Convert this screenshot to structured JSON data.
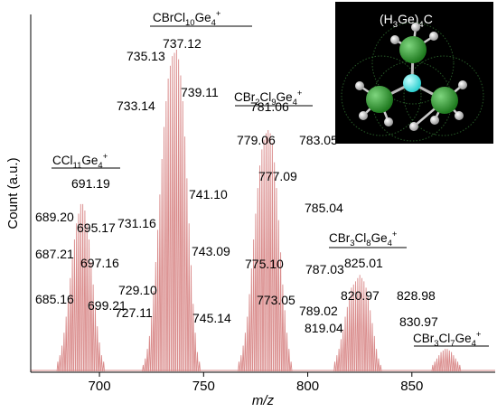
{
  "chart_data": {
    "type": "line",
    "xlabel": "m/z",
    "ylabel": "Count (a.u.)",
    "xlim": [
      667,
      890
    ],
    "x_ticks": [
      700,
      750,
      800,
      850
    ],
    "line_color": "#d98a8a",
    "peak_labels": [
      {
        "text": "685.16",
        "x": 685.16
      },
      {
        "text": "687.21",
        "x": 687.21
      },
      {
        "text": "689.20",
        "x": 689.2
      },
      {
        "text": "691.19",
        "x": 691.19
      },
      {
        "text": "695.17",
        "x": 695.17
      },
      {
        "text": "697.16",
        "x": 697.16
      },
      {
        "text": "699.21",
        "x": 699.21
      },
      {
        "text": "727.11",
        "x": 727.11
      },
      {
        "text": "729.10",
        "x": 729.1
      },
      {
        "text": "731.16",
        "x": 731.16
      },
      {
        "text": "733.14",
        "x": 733.14
      },
      {
        "text": "735.13",
        "x": 735.13
      },
      {
        "text": "737.12",
        "x": 737.12
      },
      {
        "text": "739.11",
        "x": 739.11
      },
      {
        "text": "741.10",
        "x": 741.1
      },
      {
        "text": "743.09",
        "x": 743.09
      },
      {
        "text": "745.14",
        "x": 745.14
      },
      {
        "text": "773.05",
        "x": 773.05
      },
      {
        "text": "775.10",
        "x": 775.1
      },
      {
        "text": "777.09",
        "x": 777.09
      },
      {
        "text": "779.06",
        "x": 779.06
      },
      {
        "text": "781.06",
        "x": 781.06
      },
      {
        "text": "783.05",
        "x": 783.05
      },
      {
        "text": "785.04",
        "x": 785.04
      },
      {
        "text": "787.03",
        "x": 787.03
      },
      {
        "text": "789.02",
        "x": 789.02
      },
      {
        "text": "819.04",
        "x": 819.04
      },
      {
        "text": "820.97",
        "x": 820.97
      },
      {
        "text": "825.01",
        "x": 825.01
      },
      {
        "text": "828.98",
        "x": 828.98
      },
      {
        "text": "830.97",
        "x": 830.97
      }
    ],
    "clusters": [
      {
        "formula": [
          [
            "CCl",
            ""
          ],
          [
            "11",
            "sub"
          ],
          [
            "Ge",
            ""
          ],
          [
            "4",
            "sub"
          ],
          [
            "+",
            "sup"
          ]
        ],
        "center": 692,
        "peaks": [
          [
            680,
            0.03
          ],
          [
            681,
            0.05
          ],
          [
            682,
            0.08
          ],
          [
            683,
            0.12
          ],
          [
            684,
            0.17
          ],
          [
            685,
            0.23
          ],
          [
            686,
            0.29
          ],
          [
            687,
            0.35
          ],
          [
            688,
            0.41
          ],
          [
            689,
            0.46
          ],
          [
            690,
            0.49
          ],
          [
            691,
            0.52
          ],
          [
            692,
            0.52
          ],
          [
            693,
            0.5
          ],
          [
            694,
            0.46
          ],
          [
            695,
            0.41
          ],
          [
            696,
            0.34
          ],
          [
            697,
            0.27
          ],
          [
            698,
            0.2
          ],
          [
            699,
            0.14
          ],
          [
            700,
            0.09
          ],
          [
            701,
            0.05
          ],
          [
            702,
            0.03
          ]
        ]
      },
      {
        "formula": [
          [
            "CBrCl",
            ""
          ],
          [
            "10",
            "sub"
          ],
          [
            "Ge",
            ""
          ],
          [
            "4",
            "sub"
          ],
          [
            "+",
            "sup"
          ]
        ],
        "center": 737,
        "peaks": [
          [
            721,
            0.02
          ],
          [
            722,
            0.04
          ],
          [
            723,
            0.07
          ],
          [
            724,
            0.11
          ],
          [
            725,
            0.17
          ],
          [
            726,
            0.25
          ],
          [
            727,
            0.34
          ],
          [
            728,
            0.44
          ],
          [
            729,
            0.55
          ],
          [
            730,
            0.66
          ],
          [
            731,
            0.76
          ],
          [
            732,
            0.84
          ],
          [
            733,
            0.91
          ],
          [
            734,
            0.95
          ],
          [
            735,
            0.98
          ],
          [
            736,
            0.99
          ],
          [
            737,
            1.0
          ],
          [
            738,
            0.97
          ],
          [
            739,
            0.92
          ],
          [
            740,
            0.84
          ],
          [
            741,
            0.73
          ],
          [
            742,
            0.6
          ],
          [
            743,
            0.46
          ],
          [
            744,
            0.33
          ],
          [
            745,
            0.21
          ],
          [
            746,
            0.12
          ],
          [
            747,
            0.06
          ],
          [
            748,
            0.03
          ]
        ]
      },
      {
        "formula": [
          [
            "CBr",
            ""
          ],
          [
            "2",
            "sub"
          ],
          [
            "Cl",
            ""
          ],
          [
            "9",
            "sub"
          ],
          [
            "Ge",
            ""
          ],
          [
            "4",
            "sub"
          ],
          [
            "+",
            "sup"
          ]
        ],
        "center": 781,
        "peaks": [
          [
            767,
            0.03
          ],
          [
            768,
            0.05
          ],
          [
            769,
            0.08
          ],
          [
            770,
            0.12
          ],
          [
            771,
            0.17
          ],
          [
            772,
            0.24
          ],
          [
            773,
            0.32
          ],
          [
            774,
            0.41
          ],
          [
            775,
            0.49
          ],
          [
            776,
            0.57
          ],
          [
            777,
            0.64
          ],
          [
            778,
            0.69
          ],
          [
            779,
            0.72
          ],
          [
            780,
            0.74
          ],
          [
            781,
            0.75
          ],
          [
            782,
            0.74
          ],
          [
            783,
            0.71
          ],
          [
            784,
            0.65
          ],
          [
            785,
            0.57
          ],
          [
            786,
            0.47
          ],
          [
            787,
            0.37
          ],
          [
            788,
            0.27
          ],
          [
            789,
            0.19
          ],
          [
            790,
            0.12
          ],
          [
            791,
            0.07
          ],
          [
            792,
            0.03
          ]
        ]
      },
      {
        "formula": [
          [
            "CBr",
            ""
          ],
          [
            "3",
            "sub"
          ],
          [
            "Cl",
            ""
          ],
          [
            "8",
            "sub"
          ],
          [
            "Ge",
            ""
          ],
          [
            "4",
            "sub"
          ],
          [
            "+",
            "sup"
          ]
        ],
        "center": 825,
        "peaks": [
          [
            813,
            0.03
          ],
          [
            814,
            0.05
          ],
          [
            815,
            0.07
          ],
          [
            816,
            0.1
          ],
          [
            817,
            0.13
          ],
          [
            818,
            0.17
          ],
          [
            819,
            0.2
          ],
          [
            820,
            0.23
          ],
          [
            821,
            0.26
          ],
          [
            822,
            0.27
          ],
          [
            823,
            0.28
          ],
          [
            824,
            0.29
          ],
          [
            825,
            0.3
          ],
          [
            826,
            0.29
          ],
          [
            827,
            0.28
          ],
          [
            828,
            0.26
          ],
          [
            829,
            0.23
          ],
          [
            830,
            0.19
          ],
          [
            831,
            0.15
          ],
          [
            832,
            0.11
          ],
          [
            833,
            0.07
          ],
          [
            834,
            0.04
          ],
          [
            835,
            0.02
          ]
        ]
      },
      {
        "formula": [
          [
            "CBr",
            ""
          ],
          [
            "3",
            "sub"
          ],
          [
            "Cl",
            ""
          ],
          [
            "7",
            "sub"
          ],
          [
            "Ge",
            ""
          ],
          [
            "4",
            "sub"
          ],
          [
            "+",
            "sup"
          ]
        ],
        "center": 867,
        "peaks": [
          [
            860,
            0.02
          ],
          [
            861,
            0.03
          ],
          [
            862,
            0.04
          ],
          [
            863,
            0.05
          ],
          [
            864,
            0.06
          ],
          [
            865,
            0.065
          ],
          [
            866,
            0.07
          ],
          [
            867,
            0.07
          ],
          [
            868,
            0.065
          ],
          [
            869,
            0.06
          ],
          [
            870,
            0.05
          ],
          [
            871,
            0.04
          ],
          [
            872,
            0.03
          ],
          [
            873,
            0.02
          ]
        ]
      }
    ],
    "inset": {
      "title": [
        [
          "(H",
          ""
        ],
        [
          "3",
          "sub"
        ],
        [
          "Ge)",
          ""
        ],
        [
          "4",
          "sub"
        ],
        [
          "C",
          ""
        ]
      ],
      "background": "#000000",
      "atom_colors": {
        "Ge": "#1f7a1f",
        "C": "#2fd0d0",
        "H": "#e6e6e6"
      }
    }
  }
}
